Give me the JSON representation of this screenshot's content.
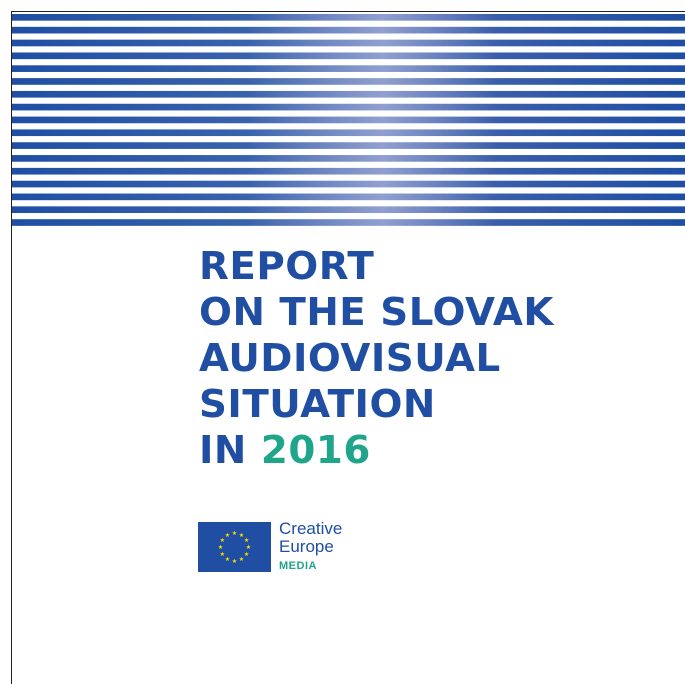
{
  "cover": {
    "title_lines": [
      "REPORT",
      "ON THE SLOVAK",
      "AUDIOVISUAL",
      "SITUATION",
      "IN"
    ],
    "year": "2016",
    "colors": {
      "title": "#1f4ea3",
      "year": "#1fa58a",
      "stripes": "#1f4ea3",
      "background": "#ffffff"
    }
  },
  "logo": {
    "icon": "eu-flag-icon",
    "line1": "Creative",
    "line2": "Europe",
    "program": "MEDIA"
  }
}
